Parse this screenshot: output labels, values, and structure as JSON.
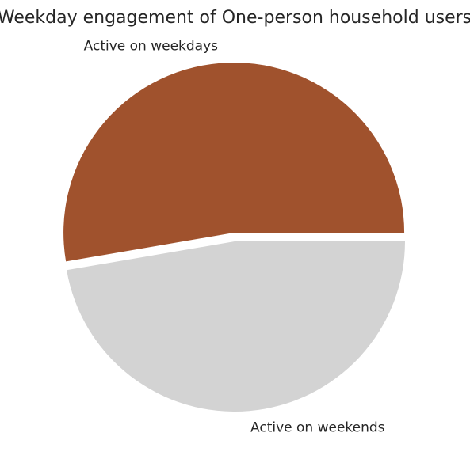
{
  "chart_data": {
    "type": "pie",
    "title": "Weekday engagement of One-person household users",
    "slices": [
      {
        "label": "Active on weekdays",
        "value": 52.7,
        "color": "#a0522d",
        "exploded": true
      },
      {
        "label": "Active on weekends",
        "value": 47.3,
        "color": "#d3d3d3",
        "exploded": false
      }
    ],
    "start_angle_deg": 0,
    "direction": "counterclockwise",
    "legend": "none"
  }
}
